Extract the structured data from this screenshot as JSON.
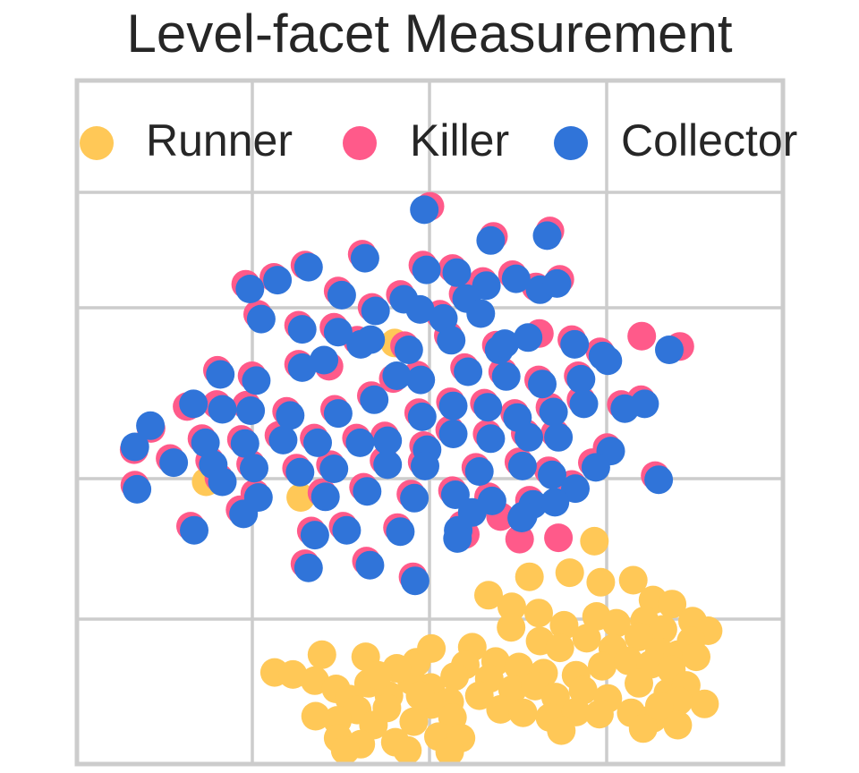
{
  "chart_data": {
    "type": "scatter",
    "title": "Level-facet Measurement",
    "xlabel": "",
    "ylabel": "",
    "xlim": [
      0,
      100
    ],
    "ylim": [
      0,
      100
    ],
    "grid": true,
    "legend_position": "top",
    "series": [
      {
        "name": "Runner",
        "color": "#FFC857",
        "points": [
          [
            18.3,
            41.3
          ],
          [
            31.7,
            39.0
          ],
          [
            45.0,
            61.6
          ],
          [
            73.3,
            32.6
          ],
          [
            64.1,
            27.4
          ],
          [
            69.8,
            28.0
          ],
          [
            74.2,
            26.6
          ],
          [
            78.8,
            26.9
          ],
          [
            81.6,
            24.0
          ],
          [
            84.3,
            23.4
          ],
          [
            58.3,
            24.7
          ],
          [
            61.6,
            23.0
          ],
          [
            65.4,
            22.1
          ],
          [
            69.0,
            20.3
          ],
          [
            73.6,
            21.6
          ],
          [
            76.4,
            20.6
          ],
          [
            80.4,
            21.0
          ],
          [
            83.0,
            19.7
          ],
          [
            87.2,
            20.9
          ],
          [
            89.4,
            19.5
          ],
          [
            61.5,
            20.0
          ],
          [
            65.6,
            18.0
          ],
          [
            68.4,
            17.0
          ],
          [
            72.2,
            18.4
          ],
          [
            75.9,
            16.9
          ],
          [
            79.6,
            18.6
          ],
          [
            82.5,
            16.4
          ],
          [
            85.1,
            16.0
          ],
          [
            87.0,
            18.0
          ],
          [
            56.0,
            17.1
          ],
          [
            59.3,
            15.0
          ],
          [
            62.6,
            14.2
          ],
          [
            66.1,
            13.3
          ],
          [
            70.7,
            13.0
          ],
          [
            74.4,
            14.3
          ],
          [
            78.1,
            15.1
          ],
          [
            81.3,
            14.6
          ],
          [
            84.2,
            13.8
          ],
          [
            87.7,
            15.7
          ],
          [
            58.4,
            12.5
          ],
          [
            61.7,
            10.9
          ],
          [
            64.9,
            11.4
          ],
          [
            67.8,
            9.8
          ],
          [
            71.7,
            10.8
          ],
          [
            75.2,
            9.6
          ],
          [
            79.6,
            11.8
          ],
          [
            83.7,
            10.4
          ],
          [
            86.3,
            11.5
          ],
          [
            60.0,
            8.0
          ],
          [
            63.2,
            7.5
          ],
          [
            67.0,
            6.8
          ],
          [
            70.7,
            7.6
          ],
          [
            74.0,
            7.3
          ],
          [
            78.5,
            7.5
          ],
          [
            81.6,
            6.7
          ],
          [
            85.2,
            9.2
          ],
          [
            88.9,
            8.8
          ],
          [
            68.6,
            4.9
          ],
          [
            80.2,
            5.2
          ],
          [
            85.1,
            5.7
          ],
          [
            82.5,
            8.5
          ],
          [
            55.0,
            14.5
          ],
          [
            53.5,
            12.8
          ],
          [
            57.0,
            10.0
          ],
          [
            28.0,
            13.4
          ],
          [
            30.6,
            13.1
          ],
          [
            33.7,
            12.2
          ],
          [
            36.7,
            11.0
          ],
          [
            38.6,
            9.5
          ],
          [
            41.3,
            11.8
          ],
          [
            44.2,
            10.0
          ],
          [
            47.4,
            12.2
          ],
          [
            50.1,
            11.2
          ],
          [
            52.8,
            9.1
          ],
          [
            34.7,
            16.0
          ],
          [
            40.9,
            15.7
          ],
          [
            48.1,
            14.9
          ],
          [
            50.2,
            16.9
          ],
          [
            45.3,
            14.0
          ],
          [
            42.6,
            13.0
          ],
          [
            39.7,
            7.9
          ],
          [
            36.9,
            6.4
          ],
          [
            33.8,
            7.0
          ],
          [
            37.0,
            3.8
          ],
          [
            42.0,
            5.7
          ],
          [
            45.1,
            3.2
          ],
          [
            47.7,
            6.2
          ],
          [
            50.2,
            8.7
          ],
          [
            53.2,
            6.8
          ],
          [
            51.2,
            4.0
          ],
          [
            54.4,
            3.8
          ],
          [
            52.8,
            1.8
          ],
          [
            40.2,
            2.9
          ],
          [
            46.8,
            2.0
          ],
          [
            43.9,
            8.2
          ],
          [
            38.0,
            2.0
          ],
          [
            48.6,
            10.0
          ]
        ]
      },
      {
        "name": "Killer",
        "color": "#FF5A8A",
        "points": [
          [
            50.0,
            81.6
          ],
          [
            59.0,
            77.2
          ],
          [
            67.0,
            78.0
          ],
          [
            27.9,
            71.2
          ],
          [
            32.3,
            73.0
          ],
          [
            40.4,
            74.6
          ],
          [
            49.0,
            73.0
          ],
          [
            53.2,
            72.5
          ],
          [
            57.5,
            70.6
          ],
          [
            61.7,
            71.6
          ],
          [
            65.0,
            69.8
          ],
          [
            68.4,
            70.9
          ],
          [
            23.9,
            70.2
          ],
          [
            37.0,
            69.2
          ],
          [
            41.8,
            66.8
          ],
          [
            45.8,
            68.7
          ],
          [
            51.4,
            65.8
          ],
          [
            54.7,
            68.8
          ],
          [
            25.6,
            65.8
          ],
          [
            31.4,
            64.2
          ],
          [
            36.4,
            63.9
          ],
          [
            39.7,
            62.0
          ],
          [
            46.4,
            61.2
          ],
          [
            52.6,
            62.7
          ],
          [
            59.4,
            61.3
          ],
          [
            65.5,
            63.0
          ],
          [
            70.1,
            62.1
          ],
          [
            74.1,
            60.3
          ],
          [
            80.0,
            62.6
          ],
          [
            85.4,
            61.1
          ],
          [
            19.9,
            57.6
          ],
          [
            24.8,
            56.8
          ],
          [
            31.4,
            58.5
          ],
          [
            35.7,
            58.2
          ],
          [
            44.8,
            56.4
          ],
          [
            48.2,
            56.9
          ],
          [
            54.9,
            58.0
          ],
          [
            60.3,
            57.4
          ],
          [
            65.4,
            56.2
          ],
          [
            71.0,
            56.8
          ],
          [
            15.6,
            52.3
          ],
          [
            19.8,
            52.6
          ],
          [
            24.0,
            52.5
          ],
          [
            29.7,
            51.6
          ],
          [
            36.5,
            51.9
          ],
          [
            41.7,
            53.9
          ],
          [
            48.4,
            51.4
          ],
          [
            52.9,
            53.0
          ],
          [
            57.7,
            52.8
          ],
          [
            62.0,
            51.3
          ],
          [
            67.0,
            52.2
          ],
          [
            71.4,
            53.3
          ],
          [
            77.1,
            52.6
          ],
          [
            79.9,
            53.3
          ],
          [
            10.5,
            49.1
          ],
          [
            17.7,
            47.6
          ],
          [
            23.3,
            47.5
          ],
          [
            28.6,
            48.1
          ],
          [
            33.6,
            47.7
          ],
          [
            39.6,
            47.7
          ],
          [
            43.6,
            48.0
          ],
          [
            49.1,
            46.6
          ],
          [
            52.8,
            48.9
          ],
          [
            58.1,
            48.3
          ],
          [
            63.5,
            48.4
          ],
          [
            67.7,
            48.4
          ],
          [
            75.1,
            46.3
          ],
          [
            8.1,
            46.0
          ],
          [
            13.2,
            44.7
          ],
          [
            18.8,
            44.4
          ],
          [
            24.6,
            43.9
          ],
          [
            31.1,
            43.3
          ],
          [
            35.9,
            43.8
          ],
          [
            43.5,
            44.4
          ],
          [
            48.9,
            44.2
          ],
          [
            56.5,
            43.4
          ],
          [
            62.6,
            44.2
          ],
          [
            66.8,
            42.9
          ],
          [
            73.0,
            44.1
          ],
          [
            81.9,
            42.2
          ],
          [
            8.2,
            40.8
          ],
          [
            20.1,
            41.9
          ],
          [
            25.2,
            39.6
          ],
          [
            34.7,
            39.7
          ],
          [
            40.6,
            40.5
          ],
          [
            47.3,
            39.5
          ],
          [
            53.2,
            40.0
          ],
          [
            58.3,
            39.1
          ],
          [
            64.1,
            38.6
          ],
          [
            70.1,
            40.9
          ],
          [
            16.1,
            34.8
          ],
          [
            23.1,
            37.2
          ],
          [
            33.2,
            34.1
          ],
          [
            37.7,
            34.8
          ],
          [
            45.4,
            34.6
          ],
          [
            55.0,
            33.6
          ],
          [
            62.7,
            32.9
          ],
          [
            68.2,
            33.1
          ],
          [
            32.3,
            29.3
          ],
          [
            41.0,
            29.7
          ],
          [
            47.6,
            27.4
          ],
          [
            54.6,
            35.0
          ],
          [
            60.0,
            36.2
          ]
        ]
      },
      {
        "name": "Collector",
        "color": "#3074D9",
        "points": [
          [
            49.2,
            81.1
          ],
          [
            58.6,
            76.6
          ],
          [
            66.6,
            77.3
          ],
          [
            28.4,
            70.8
          ],
          [
            32.8,
            72.7
          ],
          [
            40.8,
            74.0
          ],
          [
            49.5,
            72.3
          ],
          [
            53.8,
            71.9
          ],
          [
            58.0,
            70.0
          ],
          [
            62.2,
            71.0
          ],
          [
            65.6,
            69.4
          ],
          [
            68.0,
            70.3
          ],
          [
            24.5,
            69.5
          ],
          [
            37.5,
            68.6
          ],
          [
            42.3,
            66.3
          ],
          [
            46.3,
            68.0
          ],
          [
            51.9,
            65.2
          ],
          [
            55.2,
            68.1
          ],
          [
            26.1,
            65.1
          ],
          [
            31.9,
            63.6
          ],
          [
            37.0,
            63.2
          ],
          [
            40.2,
            61.4
          ],
          [
            47.0,
            60.6
          ],
          [
            53.0,
            62.0
          ],
          [
            59.8,
            60.6
          ],
          [
            63.9,
            62.4
          ],
          [
            70.5,
            61.4
          ],
          [
            74.5,
            59.7
          ],
          [
            83.9,
            60.6
          ],
          [
            16.5,
            52.7
          ],
          [
            20.3,
            57.0
          ],
          [
            25.4,
            56.1
          ],
          [
            31.9,
            58.0
          ],
          [
            35.0,
            59.1
          ],
          [
            45.3,
            56.8
          ],
          [
            48.7,
            56.2
          ],
          [
            55.4,
            57.4
          ],
          [
            60.8,
            56.7
          ],
          [
            65.9,
            55.6
          ],
          [
            71.4,
            56.3
          ],
          [
            20.6,
            51.9
          ],
          [
            24.6,
            51.7
          ],
          [
            30.2,
            51.0
          ],
          [
            37.0,
            51.3
          ],
          [
            42.1,
            53.3
          ],
          [
            48.9,
            50.8
          ],
          [
            53.3,
            52.4
          ],
          [
            58.2,
            52.2
          ],
          [
            62.4,
            50.7
          ],
          [
            67.5,
            51.5
          ],
          [
            71.8,
            52.7
          ],
          [
            77.6,
            52.0
          ],
          [
            80.4,
            52.7
          ],
          [
            10.4,
            49.5
          ],
          [
            18.2,
            47.0
          ],
          [
            23.8,
            46.9
          ],
          [
            29.2,
            47.4
          ],
          [
            34.1,
            47.0
          ],
          [
            40.1,
            47.0
          ],
          [
            44.0,
            47.3
          ],
          [
            49.6,
            46.0
          ],
          [
            53.3,
            48.3
          ],
          [
            58.6,
            47.6
          ],
          [
            64.0,
            47.8
          ],
          [
            68.2,
            47.8
          ],
          [
            75.6,
            45.8
          ],
          [
            8.2,
            46.4
          ],
          [
            13.7,
            44.1
          ],
          [
            19.3,
            43.8
          ],
          [
            25.1,
            43.3
          ],
          [
            31.6,
            42.7
          ],
          [
            36.4,
            43.2
          ],
          [
            44.0,
            43.8
          ],
          [
            49.3,
            43.6
          ],
          [
            57.0,
            42.8
          ],
          [
            63.1,
            43.6
          ],
          [
            67.3,
            42.3
          ],
          [
            73.5,
            43.4
          ],
          [
            82.4,
            41.6
          ],
          [
            8.5,
            40.2
          ],
          [
            20.6,
            41.3
          ],
          [
            25.7,
            39.0
          ],
          [
            35.2,
            39.1
          ],
          [
            41.1,
            39.9
          ],
          [
            47.8,
            38.9
          ],
          [
            53.6,
            39.4
          ],
          [
            58.8,
            38.5
          ],
          [
            64.6,
            38.0
          ],
          [
            70.6,
            40.3
          ],
          [
            16.6,
            34.2
          ],
          [
            23.6,
            36.6
          ],
          [
            33.7,
            33.5
          ],
          [
            38.2,
            34.2
          ],
          [
            45.8,
            34.0
          ],
          [
            54.0,
            34.2
          ],
          [
            63.2,
            36.3
          ],
          [
            63.0,
            36.0
          ],
          [
            67.7,
            38.3
          ],
          [
            32.8,
            28.7
          ],
          [
            41.5,
            29.1
          ],
          [
            47.9,
            26.8
          ],
          [
            53.9,
            33.0
          ],
          [
            56.0,
            36.8
          ],
          [
            75.2,
            59.0
          ],
          [
            41.6,
            62.1
          ],
          [
            48.6,
            66.5
          ],
          [
            57.2,
            65.9
          ],
          [
            60.6,
            61.5
          ]
        ]
      }
    ]
  }
}
